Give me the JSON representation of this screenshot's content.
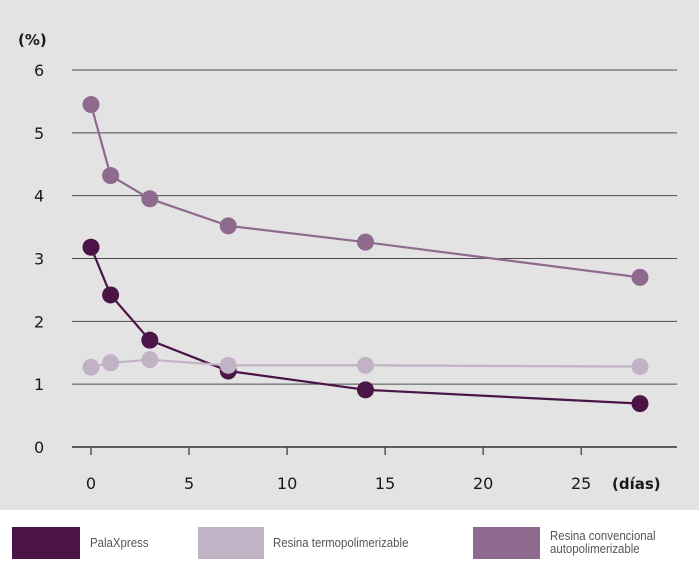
{
  "chart_data": {
    "type": "line",
    "y_unit": "(%)",
    "x_unit": "(días)",
    "ylim": [
      0,
      6
    ],
    "xlim": [
      0,
      28
    ],
    "yticks": [
      0,
      1,
      2,
      3,
      4,
      5,
      6
    ],
    "xticks": [
      0,
      5,
      10,
      15,
      20,
      25
    ],
    "grid": "horizontal",
    "legend_position": "bottom",
    "series": [
      {
        "name": "Resina convencional\nautopolimerizable",
        "color": "#8e6b8e",
        "x": [
          0,
          1,
          3,
          7,
          14,
          28
        ],
        "y": [
          5.45,
          4.32,
          3.95,
          3.52,
          3.26,
          2.7
        ]
      },
      {
        "name": "PalaXpress",
        "color": "#4a1446",
        "x": [
          0,
          1,
          3,
          7,
          14,
          28
        ],
        "y": [
          3.18,
          2.42,
          1.7,
          1.21,
          0.91,
          0.69
        ]
      },
      {
        "name": "Resina termopolimerizable",
        "color": "#c2b2c5",
        "x": [
          0,
          1,
          3,
          7,
          14,
          28
        ],
        "y": [
          1.27,
          1.34,
          1.39,
          1.3,
          1.3,
          1.28
        ]
      }
    ]
  },
  "legend": [
    {
      "label": "PalaXpress",
      "color": "#4a1446"
    },
    {
      "label": "Resina termopolimerizable",
      "color": "#c2b2c5"
    },
    {
      "label": "Resina convencional\nautopolimerizable",
      "color": "#8e6b8e"
    }
  ]
}
